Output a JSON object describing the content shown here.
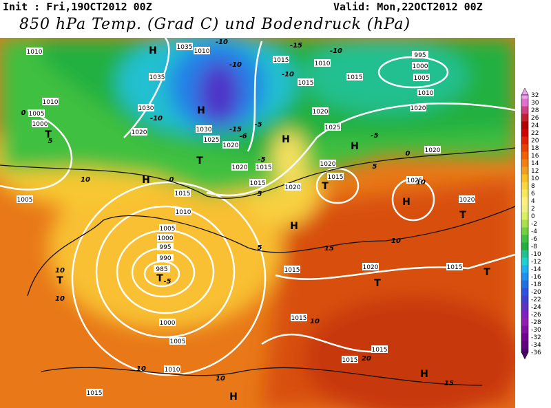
{
  "header": {
    "init": "Init : Fri,19OCT2012 00Z",
    "valid": "Valid: Mon,22OCT2012 00Z",
    "title": "850 hPa Temp. (Grad C) und Bodendruck (hPa)"
  },
  "map": {
    "pressure_labels": [
      "1010",
      "1035",
      "1010",
      "995",
      "1000",
      "1005",
      "1015",
      "1010",
      "1015",
      "1015",
      "1035",
      "1010",
      "1005",
      "1000",
      "1030",
      "1030",
      "1025",
      "1020",
      "1020",
      "1020",
      "1025",
      "1020",
      "1010",
      "1020",
      "1020",
      "1015",
      "1015",
      "1020",
      "1020",
      "1015",
      "1025",
      "1020",
      "1005",
      "1015",
      "1010",
      "1005",
      "1000",
      "995",
      "990",
      "985",
      "1015",
      "1020",
      "1015",
      "1015",
      "1000",
      "1005",
      "1010",
      "1015",
      "1015",
      "1015"
    ],
    "temperature_labels": [
      "-10",
      "-15",
      "-10",
      "-10",
      "-10",
      "-10",
      "-15",
      "-5",
      "-6",
      "-5",
      "-5",
      "0",
      "0",
      "0",
      "5",
      "10",
      "5",
      "10",
      "5",
      "5",
      "10",
      "15",
      "10",
      "10",
      "-5",
      "10",
      "10",
      "10",
      "15",
      "20"
    ],
    "centers": [
      "H",
      "H",
      "H",
      "H",
      "T",
      "H",
      "T",
      "T",
      "H",
      "T",
      "H",
      "T",
      "T",
      "T",
      "T",
      "H",
      "H"
    ]
  },
  "legend": {
    "ticks": [
      32,
      30,
      28,
      26,
      24,
      22,
      20,
      18,
      16,
      14,
      12,
      10,
      8,
      6,
      4,
      2,
      0,
      -2,
      -4,
      -6,
      -8,
      -10,
      -12,
      -14,
      -16,
      -18,
      -20,
      -22,
      -24,
      -26,
      -28,
      -30,
      -32,
      -34,
      -36
    ],
    "colors": [
      "#f0a0f0",
      "#e070d0",
      "#d04080",
      "#c02030",
      "#b00000",
      "#d00000",
      "#e02000",
      "#e84000",
      "#f06000",
      "#f08010",
      "#f0a020",
      "#f8c020",
      "#f8d840",
      "#f8e860",
      "#fff080",
      "#f0f080",
      "#d8f060",
      "#a8e050",
      "#70d040",
      "#40c040",
      "#20b040",
      "#20c090",
      "#20d0d0",
      "#20b0f0",
      "#2090f0",
      "#2070e0",
      "#3050e0",
      "#4040d0",
      "#6030c0",
      "#8020c0",
      "#9020b0",
      "#8010a0",
      "#700090",
      "#600080",
      "#500070"
    ]
  }
}
